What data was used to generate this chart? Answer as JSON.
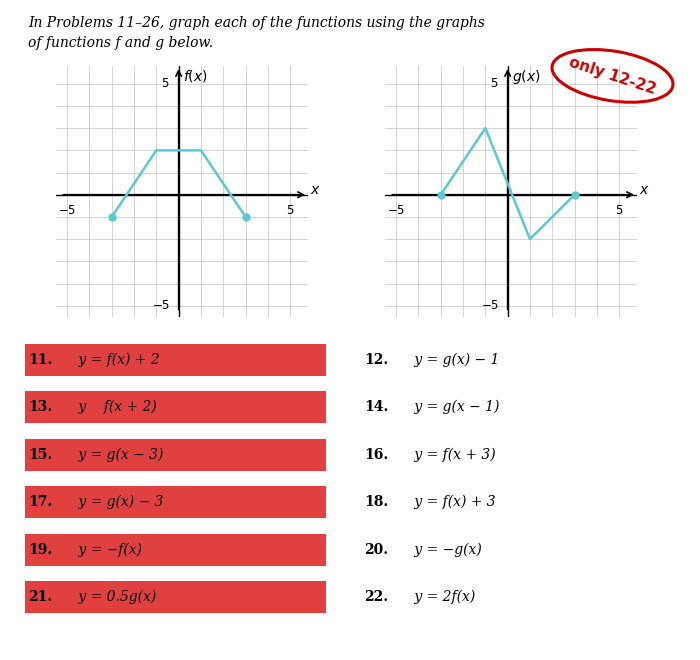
{
  "title_text": "In Problems 11–26, graph each of the functions using the graphs",
  "title_text2": "of functions f and g below.",
  "f_points_x": [
    -3,
    -1,
    1,
    3
  ],
  "f_points_y": [
    -1,
    2,
    2,
    -1
  ],
  "g_points_x": [
    -3,
    -1,
    1,
    3
  ],
  "g_points_y": [
    0,
    3,
    -2,
    0
  ],
  "curve_color": "#5bc8d5",
  "dot_color": "#5bc8d5",
  "xlim": [
    -5.5,
    5.8
  ],
  "ylim": [
    -5.5,
    5.8
  ],
  "xticks": [
    -5,
    -4,
    -3,
    -2,
    -1,
    0,
    1,
    2,
    3,
    4,
    5
  ],
  "yticks": [
    -5,
    -4,
    -3,
    -2,
    -1,
    0,
    1,
    2,
    3,
    4,
    5
  ],
  "f_label": "f(x)",
  "g_label": "g(x)",
  "items_left": [
    [
      "11.",
      " y = f(x) + 2"
    ],
    [
      "13.",
      " y    f(x + 2)"
    ],
    [
      "15.",
      " y = g(x − 3)"
    ],
    [
      "17.",
      " y = g(x) − 3"
    ],
    [
      "19.",
      " y = −f(x)"
    ],
    [
      "21.",
      " y = 0.5g(x)"
    ]
  ],
  "items_right": [
    [
      "12.",
      " y = g(x) − 1"
    ],
    [
      "14.",
      " y = g(x − 1)"
    ],
    [
      "16.",
      " y = f(x + 3)"
    ],
    [
      "18.",
      " y = f(x) + 3"
    ],
    [
      "20.",
      " y = −g(x)"
    ],
    [
      "22.",
      " y = 2f(x)"
    ]
  ],
  "highlight_color": "#e04040",
  "only_text": "only 12-22",
  "only_color": "#cc0000",
  "bg_color": "#ffffff"
}
